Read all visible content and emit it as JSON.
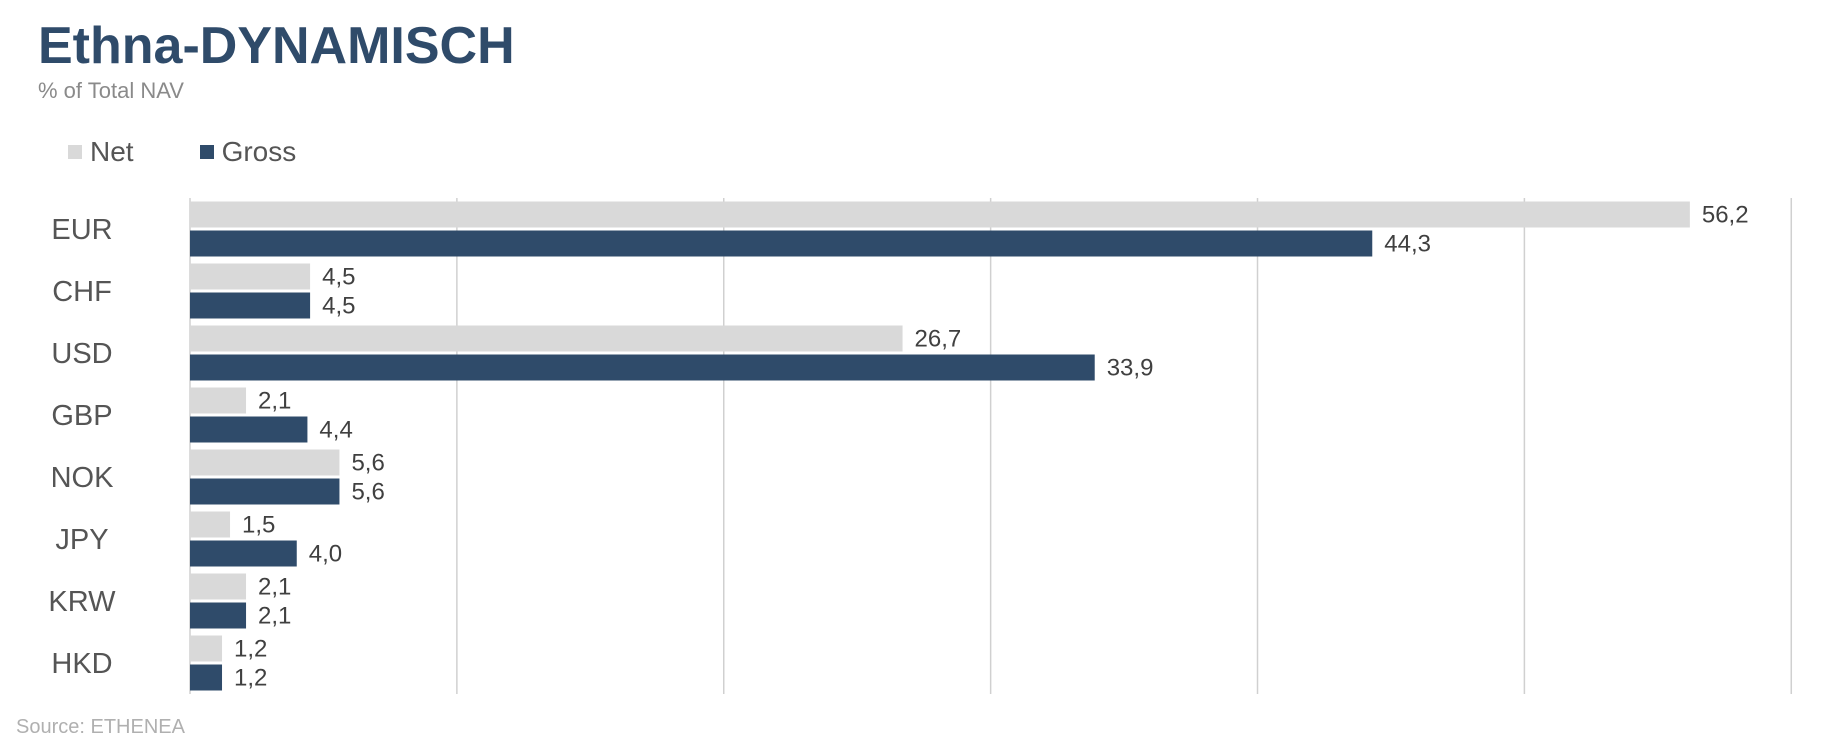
{
  "header": {
    "title": "Ethna-DYNAMISCH",
    "subtitle": "% of Total NAV"
  },
  "legend": {
    "net_label": "Net",
    "gross_label": "Gross"
  },
  "footer": {
    "source": "Source: ETHENEA"
  },
  "colors": {
    "net": "#d9d9d9",
    "gross": "#2f4b6a",
    "grid": "#d0d0d0",
    "category_text": "#555555",
    "value_text": "#404040"
  },
  "chart_data": {
    "type": "bar",
    "orientation": "horizontal",
    "categories": [
      "EUR",
      "CHF",
      "USD",
      "GBP",
      "NOK",
      "JPY",
      "KRW",
      "HKD"
    ],
    "series": [
      {
        "name": "Net",
        "values": [
          56.2,
          4.5,
          26.7,
          2.1,
          5.6,
          1.5,
          2.1,
          1.2
        ]
      },
      {
        "name": "Gross",
        "values": [
          44.3,
          4.5,
          33.9,
          4.4,
          5.6,
          4.0,
          2.1,
          1.2
        ]
      }
    ],
    "data_labels": {
      "Net": [
        "56,2",
        "4,5",
        "26,7",
        "2,1",
        "5,6",
        "1,5",
        "2,1",
        "1,2"
      ],
      "Gross": [
        "44,3",
        "4,5",
        "33,9",
        "4,4",
        "5,6",
        "4,0",
        "2,1",
        "1,2"
      ]
    },
    "title": "Ethna-DYNAMISCH",
    "subtitle": "% of Total NAV",
    "xlim": [
      0,
      60
    ],
    "x_gridlines": [
      10,
      20,
      30,
      40,
      50,
      60
    ],
    "grid": true,
    "legend_position": "top-left"
  }
}
